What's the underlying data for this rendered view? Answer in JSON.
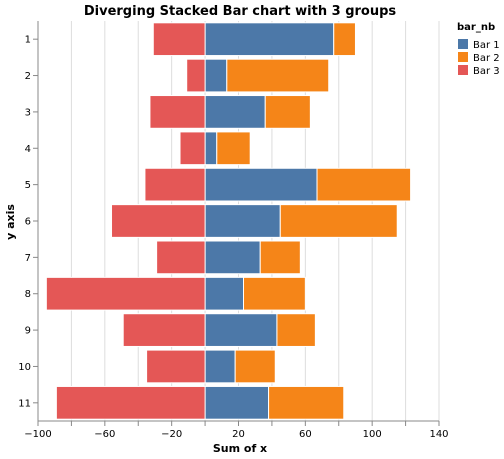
{
  "chart_data": {
    "type": "bar",
    "orientation": "horizontal",
    "stacked": true,
    "diverging": true,
    "title": "Diverging Stacked Bar chart with 3 groups",
    "xlabel": "Sum of x",
    "ylabel": "y axis",
    "xlim": [
      -100,
      140
    ],
    "xticks": [
      -100,
      -60,
      -20,
      20,
      60,
      100,
      140
    ],
    "grid": true,
    "legend": {
      "title": "bar_nb",
      "placement": "top-right"
    },
    "categories": [
      "1",
      "2",
      "3",
      "4",
      "5",
      "6",
      "7",
      "8",
      "9",
      "10",
      "11"
    ],
    "series": [
      {
        "name": "Bar 1",
        "color": "#4c78a8",
        "values": [
          77,
          13,
          36,
          7,
          67,
          45,
          33,
          23,
          43,
          18,
          38
        ]
      },
      {
        "name": "Bar 2",
        "color": "#f58518",
        "values": [
          13,
          61,
          27,
          20,
          56,
          70,
          24,
          37,
          23,
          24,
          45
        ]
      },
      {
        "name": "Bar 3",
        "color": "#e45756",
        "values": [
          -31,
          -11,
          -33,
          -15,
          -36,
          -56,
          -29,
          -95,
          -49,
          -35,
          -89
        ]
      }
    ]
  }
}
